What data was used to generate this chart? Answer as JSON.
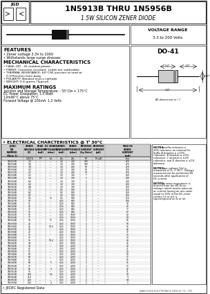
{
  "title_main": "1N5913B THRU 1N5956B",
  "title_sub": "1.5W SILICON ZENER DIODE",
  "features": [
    "• Zener voltage 3.3V to 200V",
    "• Withstands large surge stresses"
  ],
  "mech": [
    "• CASE: DO - 41 molded plastic",
    "• FINISH: Corrosion resistant. Leads are solderable",
    "• THERMAL RESISTANCE: 60°C/W junction to lead at",
    "   0.375inches from body",
    "• POLARITY: Banded end is cathode",
    "• WEIGHT: 0.4 grams (Typical)"
  ],
  "max_ratings": [
    "Junction and Storage Temperature: - 55°Cto + 175°C",
    "DC Power Dissipation: 1.5 Watt",
    "12mW/°C above 75°C",
    "Forward Voltage @ 200mA: 1.2 Volts"
  ],
  "elec_title": "• ELECTRICAL CHARCTERISTICS @ Tⁱ 30°C",
  "col_headers": [
    "JEDEC\nNO.\nNUMBER\n(Note 1)",
    "ZENER\nVOLTAGE\n(V)",
    "PEAK\nCURRENT\n(mA)",
    "DC ZENER\nIMPEDANCE\n(ohm)",
    "ZENER\nCURRENT\n(mA)",
    "ZENER\nIMPEDANCE\n(ohm)",
    "REVERSE\nCURRENT\n(by Note)",
    "REVERSE\nCURRENT\n(μA)",
    "MAX DC\nZENER\nCURRENT\n(mA)"
  ],
  "col_sub": [
    "",
    "VOLTS",
    "Ipk",
    "Izt",
    "Izk",
    "Zzt",
    "VF",
    "IR(uA)",
    "Izm"
  ],
  "table_rows": [
    [
      "1N5913B",
      "3.3",
      "---",
      "---",
      "1.0",
      "400",
      "100",
      "---",
      "270"
    ],
    [
      "1N5914B",
      "3.6",
      "---",
      "---",
      "1.0",
      "400",
      "100",
      "---",
      "270"
    ],
    [
      "1N5915B",
      "3.9",
      "---",
      "---",
      "1.0",
      "400",
      "50",
      "---",
      "270"
    ],
    [
      "1N5916B",
      "4.3",
      "---",
      "---",
      "1.0",
      "400",
      "10",
      "---",
      "270"
    ],
    [
      "1N5917B",
      "4.7",
      "---",
      "---",
      "1.0",
      "400",
      "10",
      "---",
      "270"
    ],
    [
      "1N5918B",
      "5.1",
      "---",
      "---",
      "1.0",
      "300",
      "7",
      "---",
      "200"
    ],
    [
      "1N5919B",
      "5.6",
      "---",
      "---",
      "1.0",
      "300",
      "5",
      "---",
      "200"
    ],
    [
      "1N5920B",
      "6.0",
      "---",
      "---",
      "1.0",
      "300",
      "2",
      "---",
      "200"
    ],
    [
      "1N5921B",
      "6.2",
      "---",
      "---",
      "1.0",
      "300",
      "2",
      "---",
      "200"
    ],
    [
      "1N5922B",
      "6.8",
      "---",
      "---",
      "1.0",
      "300",
      "2",
      "---",
      "150"
    ],
    [
      "1N5923B",
      "7.5",
      "---",
      "---",
      "0.5",
      "500",
      "2",
      "---",
      "150"
    ],
    [
      "1N5924B",
      "8.2",
      "---",
      "---",
      "0.5",
      "500",
      "2",
      "---",
      "120"
    ],
    [
      "1N5925B",
      "8.7",
      "---",
      "---",
      "0.5",
      "500",
      "2",
      "---",
      "120"
    ],
    [
      "1N5926B",
      "9.1",
      "---",
      "75",
      "0.5",
      "500",
      "2",
      "---",
      "110"
    ],
    [
      "1N5927B",
      "10",
      "---",
      "---",
      "0.25",
      "600",
      "2",
      "---",
      "100"
    ],
    [
      "1N5928B",
      "11",
      "---",
      "---",
      "0.25",
      "600",
      "2",
      "---",
      "90"
    ],
    [
      "1N5929B",
      "12",
      "---",
      "---",
      "0.25",
      "600",
      "2",
      "---",
      "83"
    ],
    [
      "1N5930B",
      "13",
      "---",
      "---",
      "0.25",
      "600",
      "2",
      "---",
      "77"
    ],
    [
      "1N5931B",
      "15",
      "---",
      "---",
      "0.25",
      "600",
      "2",
      "---",
      "67"
    ],
    [
      "1N5932B",
      "16",
      "---",
      "---",
      "0.25",
      "1000",
      "2",
      "---",
      "63"
    ],
    [
      "1N5933B",
      "17",
      "---",
      "---",
      "0.25",
      "1000",
      "2",
      "---",
      "59"
    ],
    [
      "1N5934B",
      "18",
      "---",
      "17",
      "0.25",
      "1000",
      "2",
      "---",
      "56"
    ],
    [
      "1N5935B",
      "20",
      "---",
      "---",
      "0.25",
      "1000",
      "2",
      "---",
      "50"
    ],
    [
      "1N5936B",
      "22",
      "---",
      "10.4",
      "0.25",
      "1000",
      "2",
      "---",
      "45"
    ],
    [
      "1N5937B",
      "24",
      "---",
      "---",
      "0.25",
      "1000",
      "2",
      "---",
      "42"
    ],
    [
      "1N5938B",
      "27",
      "---",
      "---",
      "0.25",
      "1000",
      "2",
      "---",
      "37"
    ],
    [
      "1N5939B",
      "30",
      "---",
      "---",
      "0.25",
      "1000",
      "2",
      "---",
      "33"
    ],
    [
      "1N5940B",
      "33",
      "---",
      "---",
      "0.25",
      "1000",
      "2",
      "---",
      "30"
    ],
    [
      "1N5941B",
      "36",
      "---",
      "10.4",
      "0.25",
      "1000",
      "2",
      "---",
      "28"
    ],
    [
      "1N5942B",
      "39",
      "---",
      "---",
      "0.25",
      "1000",
      "2",
      "---",
      "26"
    ],
    [
      "1N5943B",
      "43",
      "---",
      "---",
      "0.25",
      "2000",
      "2",
      "---",
      "23"
    ],
    [
      "1N5944B",
      "47",
      "---",
      "---",
      "0.25",
      "2000",
      "2",
      "---",
      "21"
    ],
    [
      "1N5945B",
      "51",
      "---",
      "---",
      "0.25",
      "2000",
      "2",
      "---",
      "20"
    ],
    [
      "1N5946B",
      "56",
      "---",
      "---",
      "0.25",
      "2000",
      "2",
      "---",
      "18"
    ],
    [
      "1N5947B",
      "60",
      "---",
      "---",
      "0.25",
      "2000",
      "2",
      "---",
      "17"
    ],
    [
      "1N5948B",
      "62",
      "---",
      "---",
      "0.25",
      "2000",
      "2",
      "---",
      "16"
    ],
    [
      "1N5949B",
      "68",
      "---",
      "5",
      "0.25",
      "2000",
      "2",
      "---",
      "15"
    ],
    [
      "1N5950B",
      "75",
      "---",
      "---",
      "0.25",
      "2000",
      "2",
      "---",
      "13"
    ],
    [
      "1N5951B",
      "82",
      "---",
      "4",
      "0.25",
      "4000",
      "2",
      "---",
      "12"
    ],
    [
      "1N5952B",
      "91",
      "---",
      "---",
      "0.25",
      "4000",
      "2",
      "---",
      "11"
    ],
    [
      "1N5953B",
      "100",
      "---",
      "3.5",
      "0.25",
      "4000",
      "2",
      "---",
      "10"
    ],
    [
      "1N5954B",
      "110",
      "---",
      "---",
      "0.25",
      "4000",
      "2",
      "---",
      "9"
    ],
    [
      "1N5955B",
      "120",
      "---",
      "---",
      "0.25",
      "4000",
      "2",
      "---",
      "8.3"
    ],
    [
      "1N5956B",
      "200",
      "---",
      "4",
      "0.25",
      "4000",
      "2",
      "---",
      "5"
    ]
  ],
  "notes": [
    "NOTE 1: No suffix indicates a 20% tolerance on nominal Vz. Suffix A denotes a ±10% tolerance. B denotes a ±5% tolerance. C denotes a ±2% tolerance, and D denotes a ±1% tolerance.",
    "NOTE 2: Zener voltage (Vz) is measured at TL = 30°C. Voltage measurement be performed 60 seconds after application of DC current.",
    "NOTE 3: The zener impedance is derived from the 60 Hz ac voltage, which results when an ac current having an rms value equal to 10% of the DC zener current (Iz or Izt) is superimposed on Iz or Izt."
  ],
  "jedec_note": "• JEDEC Registered Data",
  "company": "JINAN GUDE ELECTRONICS DEVICE CO., LTD."
}
